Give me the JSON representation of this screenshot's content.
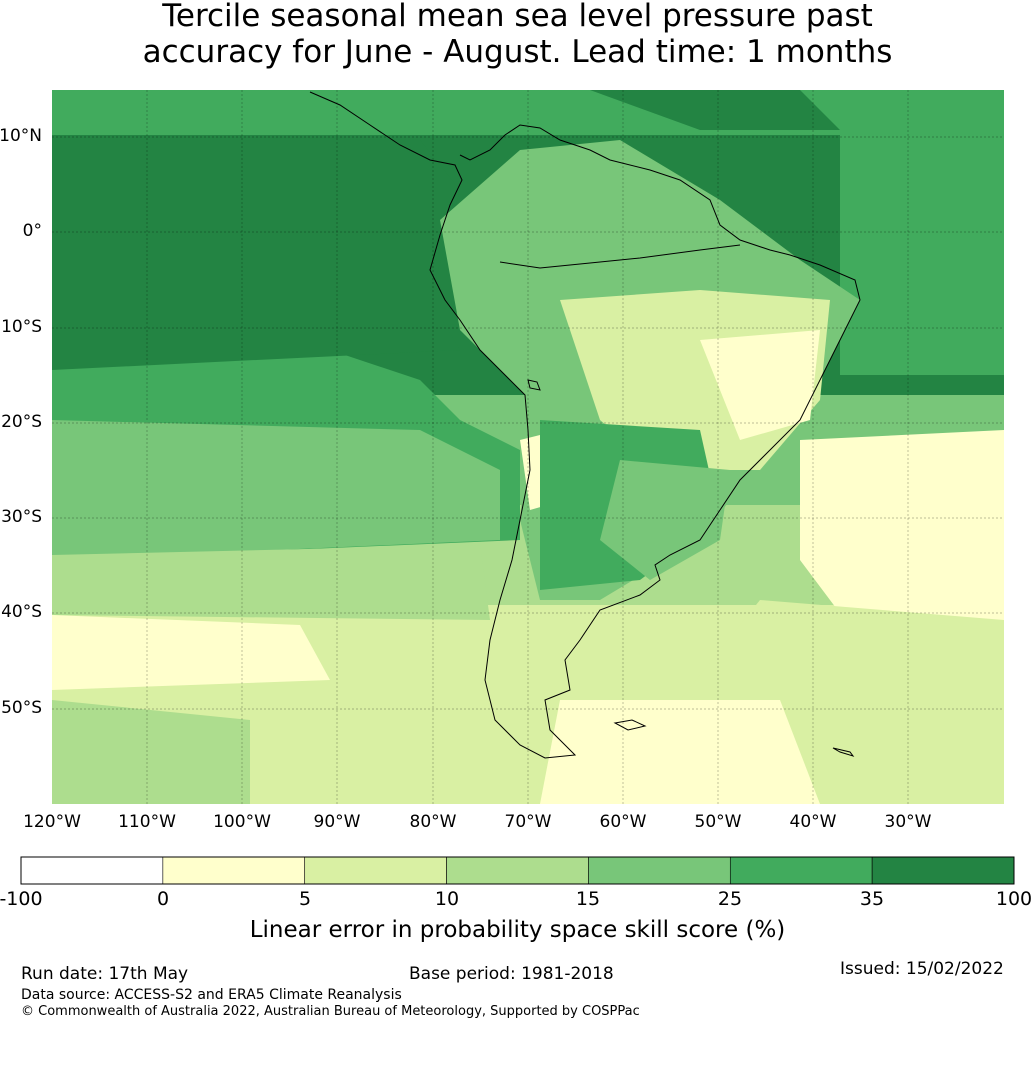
{
  "title_line1": "Tercile seasonal mean sea level pressure past",
  "title_line2": "accuracy for June - August. Lead time: 1 months",
  "lat_labels": [
    "10°N",
    "0°",
    "10°S",
    "20°S",
    "30°S",
    "40°S",
    "50°S"
  ],
  "lon_labels": [
    "120°W",
    "110°W",
    "100°W",
    "90°W",
    "80°W",
    "70°W",
    "60°W",
    "50°W",
    "40°W",
    "30°W"
  ],
  "colorbar": {
    "ticks": [
      "-100",
      "0",
      "5",
      "10",
      "15",
      "25",
      "35",
      "100"
    ],
    "colors": [
      "#ffffff",
      "#ffffcc",
      "#d9f0a3",
      "#addd8e",
      "#78c679",
      "#41ab5d",
      "#238443"
    ],
    "label": "Linear error in probability space skill score (%)"
  },
  "footer": {
    "run_date": "Run date: 17th May",
    "base_period": "Base period: 1981-2018",
    "issued": "Issued: 15/02/2022",
    "data_source": "Data source: ACCESS-S2 and ERA5 Climate Reanalysis",
    "copyright": "© Commonwealth of Australia 2022, Australian Bureau of Meteorology, Supported by COSPPac"
  }
}
